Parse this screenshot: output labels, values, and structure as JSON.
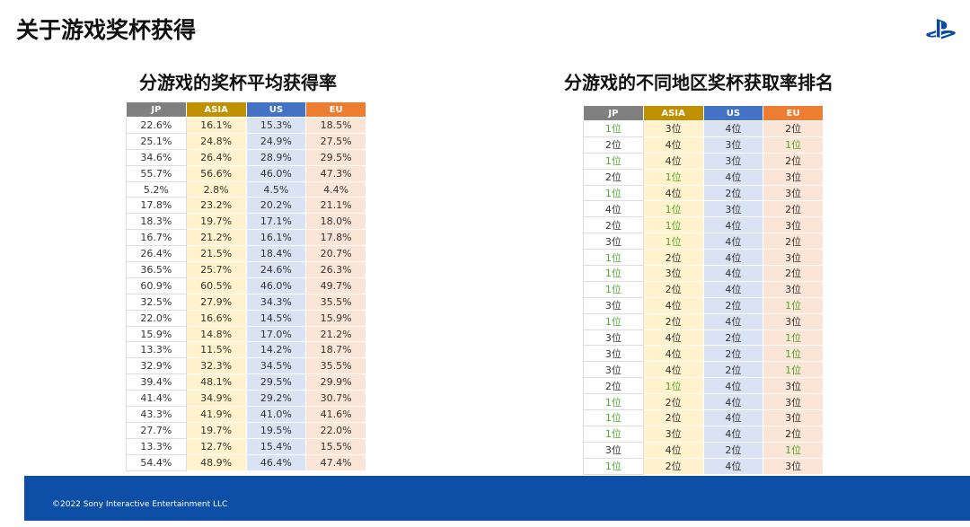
{
  "header": {
    "title": "关于游戏奖杯获得"
  },
  "left_table": {
    "title": "分游戏的奖杯平均获得率",
    "columns": [
      "JP",
      "ASIA",
      "US",
      "EU"
    ],
    "rows": [
      [
        "22.6%",
        "16.1%",
        "15.3%",
        "18.5%"
      ],
      [
        "25.1%",
        "24.8%",
        "24.9%",
        "27.5%"
      ],
      [
        "34.6%",
        "26.4%",
        "28.9%",
        "29.5%"
      ],
      [
        "55.7%",
        "56.6%",
        "46.0%",
        "47.3%"
      ],
      [
        "5.2%",
        "2.8%",
        "4.5%",
        "4.4%"
      ],
      [
        "17.8%",
        "23.2%",
        "20.2%",
        "21.1%"
      ],
      [
        "18.3%",
        "19.7%",
        "17.1%",
        "18.0%"
      ],
      [
        "16.7%",
        "21.2%",
        "16.1%",
        "17.8%"
      ],
      [
        "26.4%",
        "21.5%",
        "18.4%",
        "20.7%"
      ],
      [
        "36.5%",
        "25.7%",
        "24.6%",
        "26.3%"
      ],
      [
        "60.9%",
        "60.5%",
        "46.0%",
        "49.7%"
      ],
      [
        "32.5%",
        "27.9%",
        "34.3%",
        "35.5%"
      ],
      [
        "22.0%",
        "16.6%",
        "14.5%",
        "15.9%"
      ],
      [
        "15.9%",
        "14.8%",
        "17.0%",
        "21.2%"
      ],
      [
        "13.3%",
        "11.5%",
        "14.2%",
        "18.7%"
      ],
      [
        "32.9%",
        "32.3%",
        "34.5%",
        "35.5%"
      ],
      [
        "39.4%",
        "48.1%",
        "29.5%",
        "29.9%"
      ],
      [
        "41.4%",
        "34.9%",
        "29.2%",
        "30.7%"
      ],
      [
        "43.3%",
        "41.9%",
        "41.0%",
        "41.6%"
      ],
      [
        "27.7%",
        "19.7%",
        "19.5%",
        "22.0%"
      ],
      [
        "13.3%",
        "12.7%",
        "15.4%",
        "15.5%"
      ],
      [
        "54.4%",
        "48.9%",
        "46.4%",
        "47.4%"
      ]
    ]
  },
  "right_table": {
    "title": "分游戏的不同地区奖杯获取率排名",
    "columns": [
      "JP",
      "ASIA",
      "US",
      "EU"
    ],
    "rows": [
      [
        "1位",
        "3位",
        "4位",
        "2位"
      ],
      [
        "2位",
        "4位",
        "3位",
        "1位"
      ],
      [
        "1位",
        "4位",
        "3位",
        "2位"
      ],
      [
        "2位",
        "1位",
        "4位",
        "3位"
      ],
      [
        "1位",
        "4位",
        "2位",
        "3位"
      ],
      [
        "4位",
        "1位",
        "3位",
        "2位"
      ],
      [
        "2位",
        "1位",
        "4位",
        "3位"
      ],
      [
        "3位",
        "1位",
        "4位",
        "2位"
      ],
      [
        "1位",
        "2位",
        "4位",
        "3位"
      ],
      [
        "1位",
        "3位",
        "4位",
        "2位"
      ],
      [
        "1位",
        "2位",
        "4位",
        "3位"
      ],
      [
        "3位",
        "4位",
        "2位",
        "1位"
      ],
      [
        "1位",
        "2位",
        "4位",
        "3位"
      ],
      [
        "3位",
        "4位",
        "2位",
        "1位"
      ],
      [
        "3位",
        "4位",
        "2位",
        "1位"
      ],
      [
        "3位",
        "4位",
        "2位",
        "1位"
      ],
      [
        "2位",
        "1位",
        "4位",
        "3位"
      ],
      [
        "1位",
        "2位",
        "4位",
        "3位"
      ],
      [
        "1位",
        "2位",
        "4位",
        "3位"
      ],
      [
        "1位",
        "3位",
        "4位",
        "2位"
      ],
      [
        "3位",
        "4位",
        "2位",
        "1位"
      ],
      [
        "1位",
        "2位",
        "4位",
        "3位"
      ]
    ]
  },
  "footer": {
    "copyright": "©2022 Sony Interactive Entertainment LLC"
  }
}
